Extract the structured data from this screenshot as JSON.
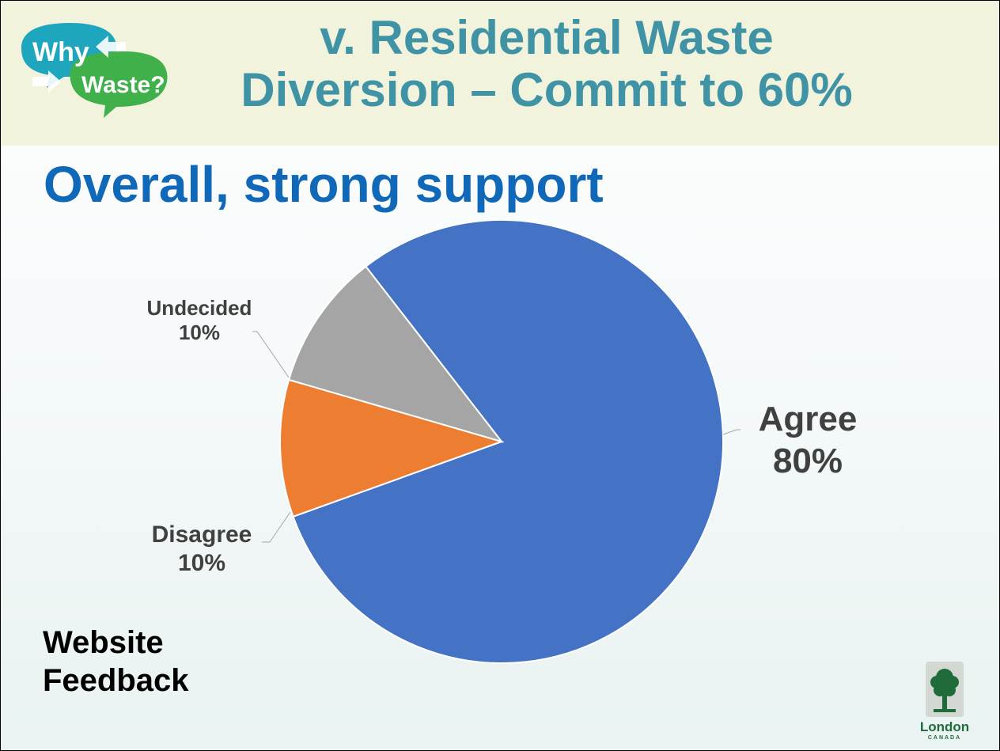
{
  "slide": {
    "title_line1": "v. Residential Waste",
    "title_line2": "Diversion – Commit to 60%",
    "subtitle": "Overall, strong support",
    "footnote_line1": "Website",
    "footnote_line2": "Feedback"
  },
  "logo": {
    "word1": "Why",
    "word2": "Waste?"
  },
  "org_logo": {
    "name": "London",
    "country": "CANADA"
  },
  "colors": {
    "title": "#3f93a5",
    "subtitle": "#1068b8",
    "agree": "#4472c4",
    "disagree": "#ed7d31",
    "undecided": "#a5a5a5"
  },
  "chart_data": {
    "type": "pie",
    "title": "",
    "slices": [
      {
        "label": "Agree",
        "value": 80,
        "value_label": "80%",
        "color": "#4472c4"
      },
      {
        "label": "Disagree",
        "value": 10,
        "value_label": "10%",
        "color": "#ed7d31"
      },
      {
        "label": "Undecided",
        "value": 10,
        "value_label": "10%",
        "color": "#a5a5a5"
      }
    ],
    "legend": "none",
    "data_labels": "outside with leader lines"
  }
}
